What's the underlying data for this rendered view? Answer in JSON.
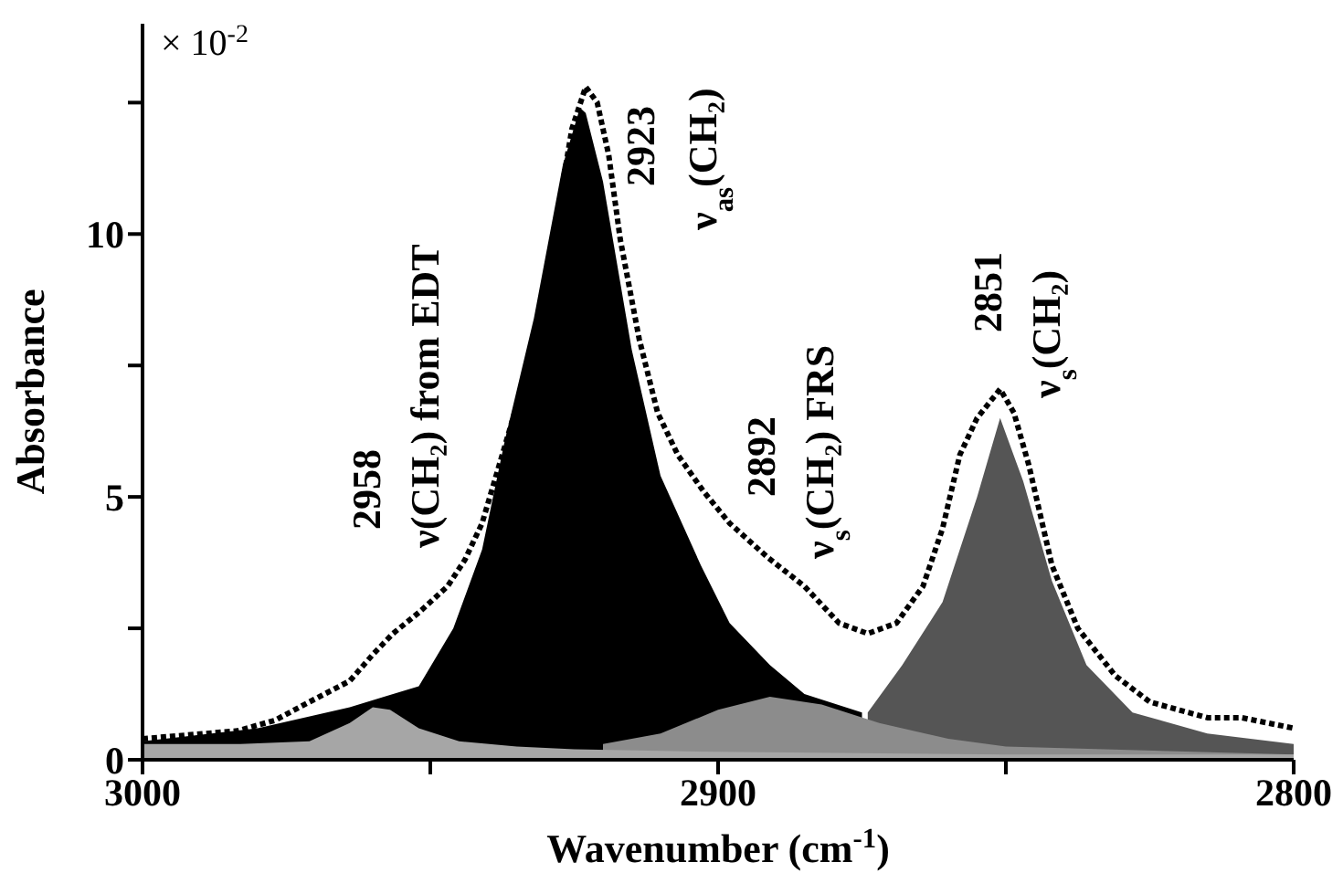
{
  "chart_data": {
    "type": "area",
    "xlabel": "Wavenumber (cm$^{-1}$)",
    "ylabel": "Absorbance",
    "xlim": [
      3000,
      2800
    ],
    "xticks": [
      3000,
      {
        "value": 2950,
        "label": null
      },
      2900,
      {
        "value": 2850,
        "label": null
      },
      2800
    ],
    "ylim": [
      0,
      14
    ],
    "yticks": [
      0,
      {
        "value": 2.5,
        "label": null
      },
      5,
      {
        "value": 7.5,
        "label": null
      },
      10,
      {
        "value": 12.5,
        "label": null
      }
    ],
    "grid": false,
    "annotations": [
      "× 10$^{-2}$",
      "2958",
      "ν(CH₂) from EDT",
      "2923",
      "ν$_{as}$(CH₂)",
      "2892",
      "ν$_{s}$(CH₂) FRS",
      "2851",
      "ν$_{s}$(CH₂)"
    ],
    "series": [
      {
        "color": "#000000",
        "x": [
          3000,
          2980,
          2964,
          2952,
          2946,
          2941,
          2937,
          2932,
          2927,
          2924,
          2923,
          2920,
          2915,
          2910,
          2903,
          2898,
          2891,
          2885,
          2875
        ],
        "values": [
          0.35,
          0.6,
          1.0,
          1.4,
          2.5,
          4.0,
          6.1,
          8.4,
          11.3,
          12.4,
          12.3,
          11.0,
          7.8,
          5.4,
          3.7,
          2.6,
          1.8,
          1.25,
          0.9
        ]
      },
      {
        "color": "#555555",
        "x": [
          2874,
          2868,
          2861,
          2855,
          2851,
          2847,
          2842,
          2836,
          2828,
          2815,
          2800
        ],
        "values": [
          0.9,
          1.8,
          3.0,
          5.0,
          6.5,
          5.3,
          3.4,
          1.8,
          0.9,
          0.5,
          0.3
        ]
      },
      {
        "color": "#8c8c8c",
        "x": [
          2920,
          2910,
          2900,
          2891,
          2882,
          2872,
          2860,
          2850,
          2800
        ],
        "values": [
          0.3,
          0.5,
          0.95,
          1.2,
          1.05,
          0.7,
          0.4,
          0.25,
          0.1
        ]
      },
      {
        "color": "#a6a6a6",
        "x": [
          3000,
          2983,
          2971,
          2964,
          2960,
          2957,
          2952,
          2945,
          2935,
          2925,
          2900,
          2850,
          2800
        ],
        "values": [
          0.3,
          0.3,
          0.35,
          0.7,
          1.0,
          0.95,
          0.6,
          0.35,
          0.25,
          0.2,
          0.15,
          0.1,
          0.1
        ]
      },
      {
        "type": "line",
        "color": "#000000",
        "line_style": "dotted",
        "x": [
          3000,
          2983.5,
          2977,
          2971,
          2964,
          2960,
          2956.5,
          2952,
          2947,
          2944,
          2941,
          2937.5,
          2934,
          2931,
          2928,
          2925.4,
          2923,
          2921,
          2919,
          2917,
          2913.7,
          2910.5,
          2907,
          2902.5,
          2898,
          2891.4,
          2885,
          2879,
          2874,
          2869,
          2864.4,
          2861,
          2858,
          2855,
          2851,
          2848.6,
          2846,
          2842,
          2837.5,
          2831,
          2825,
          2815,
          2809,
          2800
        ],
        "values": [
          0.4,
          0.55,
          0.75,
          1.1,
          1.5,
          2.0,
          2.4,
          2.8,
          3.3,
          3.8,
          4.5,
          5.8,
          7.1,
          8.5,
          10.3,
          12.0,
          12.8,
          12.5,
          11.5,
          9.9,
          8.0,
          6.6,
          5.8,
          5.1,
          4.5,
          3.85,
          3.3,
          2.6,
          2.4,
          2.6,
          3.3,
          4.4,
          5.8,
          6.5,
          7.05,
          6.6,
          5.6,
          3.7,
          2.5,
          1.6,
          1.1,
          0.8,
          0.8,
          0.6
        ]
      }
    ]
  }
}
